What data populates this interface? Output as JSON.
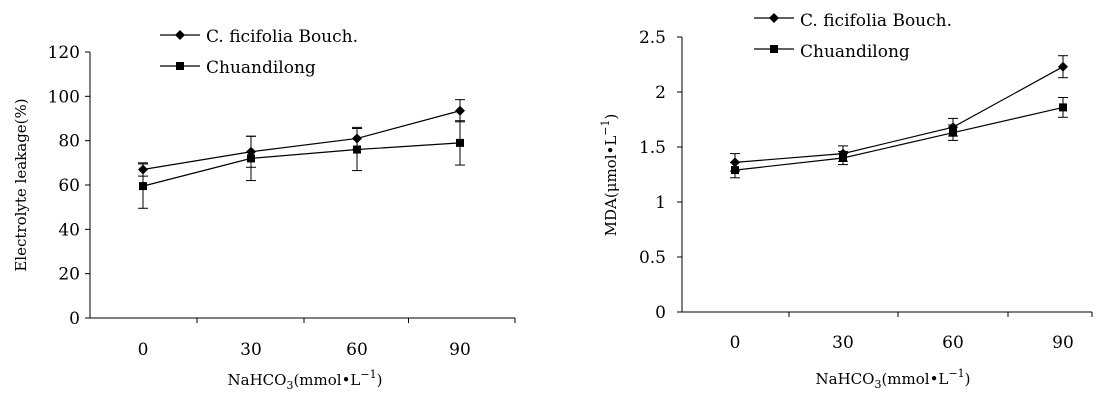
{
  "chart_data": [
    {
      "type": "line",
      "xlabel": "NaHCO3(mmol•L-1)",
      "xlabel_parts": {
        "base": "NaHCO",
        "sub": "3",
        "mid": "(mmol•L",
        "sup": "−1",
        "end": ")"
      },
      "ylabel": "Electrolyte leakage(%)",
      "categories": [
        "0",
        "30",
        "60",
        "90"
      ],
      "ylim": [
        0,
        120
      ],
      "yticks": [
        "0",
        "20",
        "40",
        "60",
        "80",
        "100",
        "120"
      ],
      "ytick_values": [
        0,
        20,
        40,
        60,
        80,
        100,
        120
      ],
      "legend_position": "top-left",
      "grid": false,
      "series": [
        {
          "name": "C. ficifolia Bouch.",
          "marker": "diamond",
          "values": [
            67,
            75,
            81,
            93.5
          ],
          "errors": [
            3,
            7,
            5,
            5
          ]
        },
        {
          "name": "Chuandilong",
          "marker": "square",
          "values": [
            59.5,
            72,
            76,
            79
          ],
          "errors": [
            10,
            10,
            9.5,
            10
          ]
        }
      ]
    },
    {
      "type": "line",
      "xlabel": "NaHCO3(mmol•L-1)",
      "xlabel_parts": {
        "base": "NaHCO",
        "sub": "3",
        "mid": "(mmol•L",
        "sup": "−1",
        "end": ")"
      },
      "ylabel": "MDA(μmol•L-1)",
      "ylabel_parts": {
        "base": "MDA(μmol•L",
        "sup": "−1",
        "end": ")"
      },
      "categories": [
        "0",
        "30",
        "60",
        "90"
      ],
      "ylim": [
        0,
        2.5
      ],
      "yticks": [
        "0",
        "0.5",
        "1",
        "1.5",
        "2",
        "2.5"
      ],
      "ytick_values": [
        0,
        0.5,
        1,
        1.5,
        2,
        2.5
      ],
      "legend_position": "top-left",
      "grid": false,
      "series": [
        {
          "name": "C. ficifolia Bouch.",
          "marker": "diamond",
          "values": [
            1.36,
            1.44,
            1.68,
            2.23
          ],
          "errors": [
            0.08,
            0.07,
            0.08,
            0.1
          ]
        },
        {
          "name": "Chuandilong",
          "marker": "square",
          "values": [
            1.29,
            1.4,
            1.63,
            1.86
          ],
          "errors": [
            0.07,
            0.06,
            0.07,
            0.09
          ]
        }
      ]
    }
  ]
}
